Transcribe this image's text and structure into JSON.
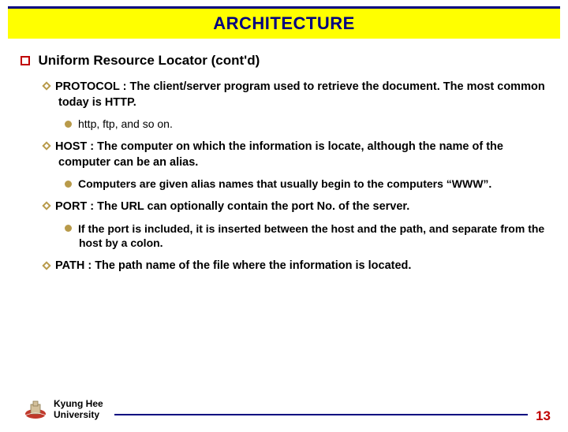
{
  "title": "ARCHITECTURE",
  "heading": "Uniform Resource Locator (cont'd)",
  "items": [
    {
      "text": "PROTOCOL : The client/server program used to retrieve the document. The most common today is HTTP.",
      "sub": [
        {
          "text": "http, ftp, and so on.",
          "bold": false
        }
      ]
    },
    {
      "text": "HOST : The computer on which the information is locate, although the name of the computer can be an alias.",
      "sub": [
        {
          "text": "Computers are given alias names that usually begin to the computers “WWW”.",
          "bold": true
        }
      ]
    },
    {
      "text": "PORT : The URL can optionally contain the port No. of the server.",
      "sub": [
        {
          "text": "If the port is included, it is inserted between the host and the path, and separate from the host by a colon.",
          "bold": true
        }
      ]
    },
    {
      "text": "PATH : The path name of the file where the information is located.",
      "sub": []
    }
  ],
  "footer": {
    "university_l1": "Kyung Hee",
    "university_l2": "University",
    "page": "13"
  },
  "colors": {
    "title_bg": "#ffff00",
    "title_fg": "#000080",
    "accent": "#c00000",
    "bullet": "#b89a4a",
    "rule": "#000080"
  }
}
